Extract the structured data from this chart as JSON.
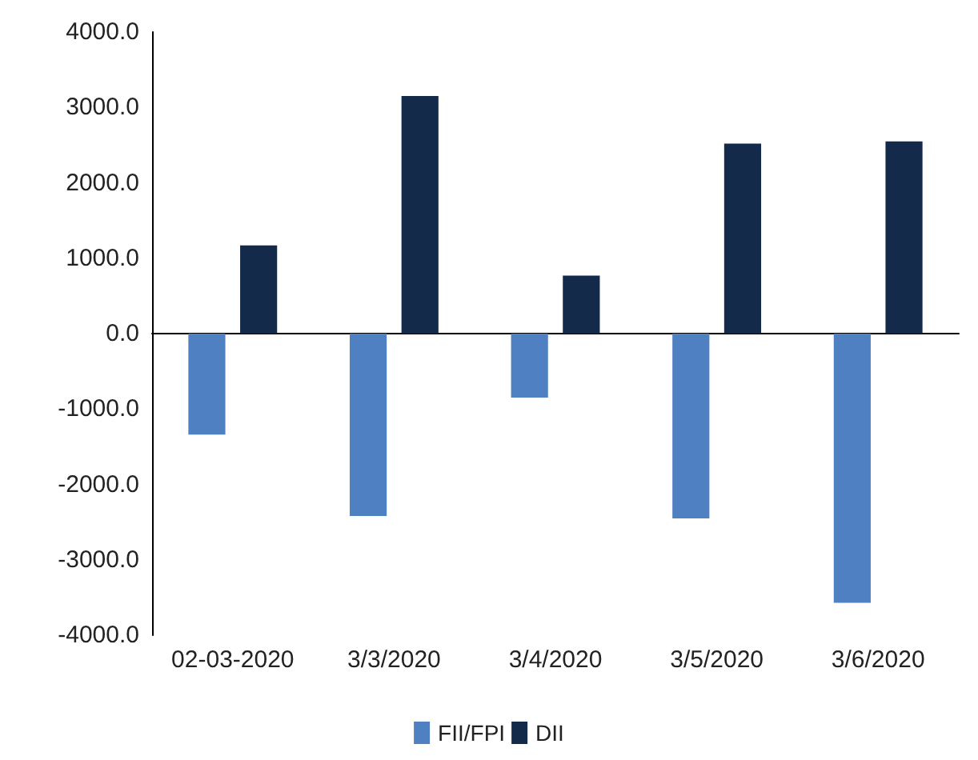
{
  "chart_data": {
    "type": "bar",
    "categories": [
      "02-03-2020",
      "3/3/2020",
      "3/4/2020",
      "3/5/2020",
      "3/6/2020"
    ],
    "series": [
      {
        "name": "FII/FPI",
        "color": "#4f81c2",
        "values": [
          -1340,
          -2420,
          -850,
          -2450,
          -3570
        ]
      },
      {
        "name": "DII",
        "color": "#142a4a",
        "values": [
          1170,
          3150,
          770,
          2520,
          2550
        ]
      }
    ],
    "ylim": [
      -4000,
      4000
    ],
    "yticks": [
      {
        "value": -4000,
        "label": "-4000.0"
      },
      {
        "value": -3000,
        "label": "-3000.0"
      },
      {
        "value": -2000,
        "label": "-2000.0"
      },
      {
        "value": -1000,
        "label": "-1000.0"
      },
      {
        "value": 0,
        "label": "0.0"
      },
      {
        "value": 1000,
        "label": "1000.0"
      },
      {
        "value": 2000,
        "label": "2000.0"
      },
      {
        "value": 3000,
        "label": "3000.0"
      },
      {
        "value": 4000,
        "label": "4000.0"
      }
    ],
    "legend": "bottom"
  }
}
